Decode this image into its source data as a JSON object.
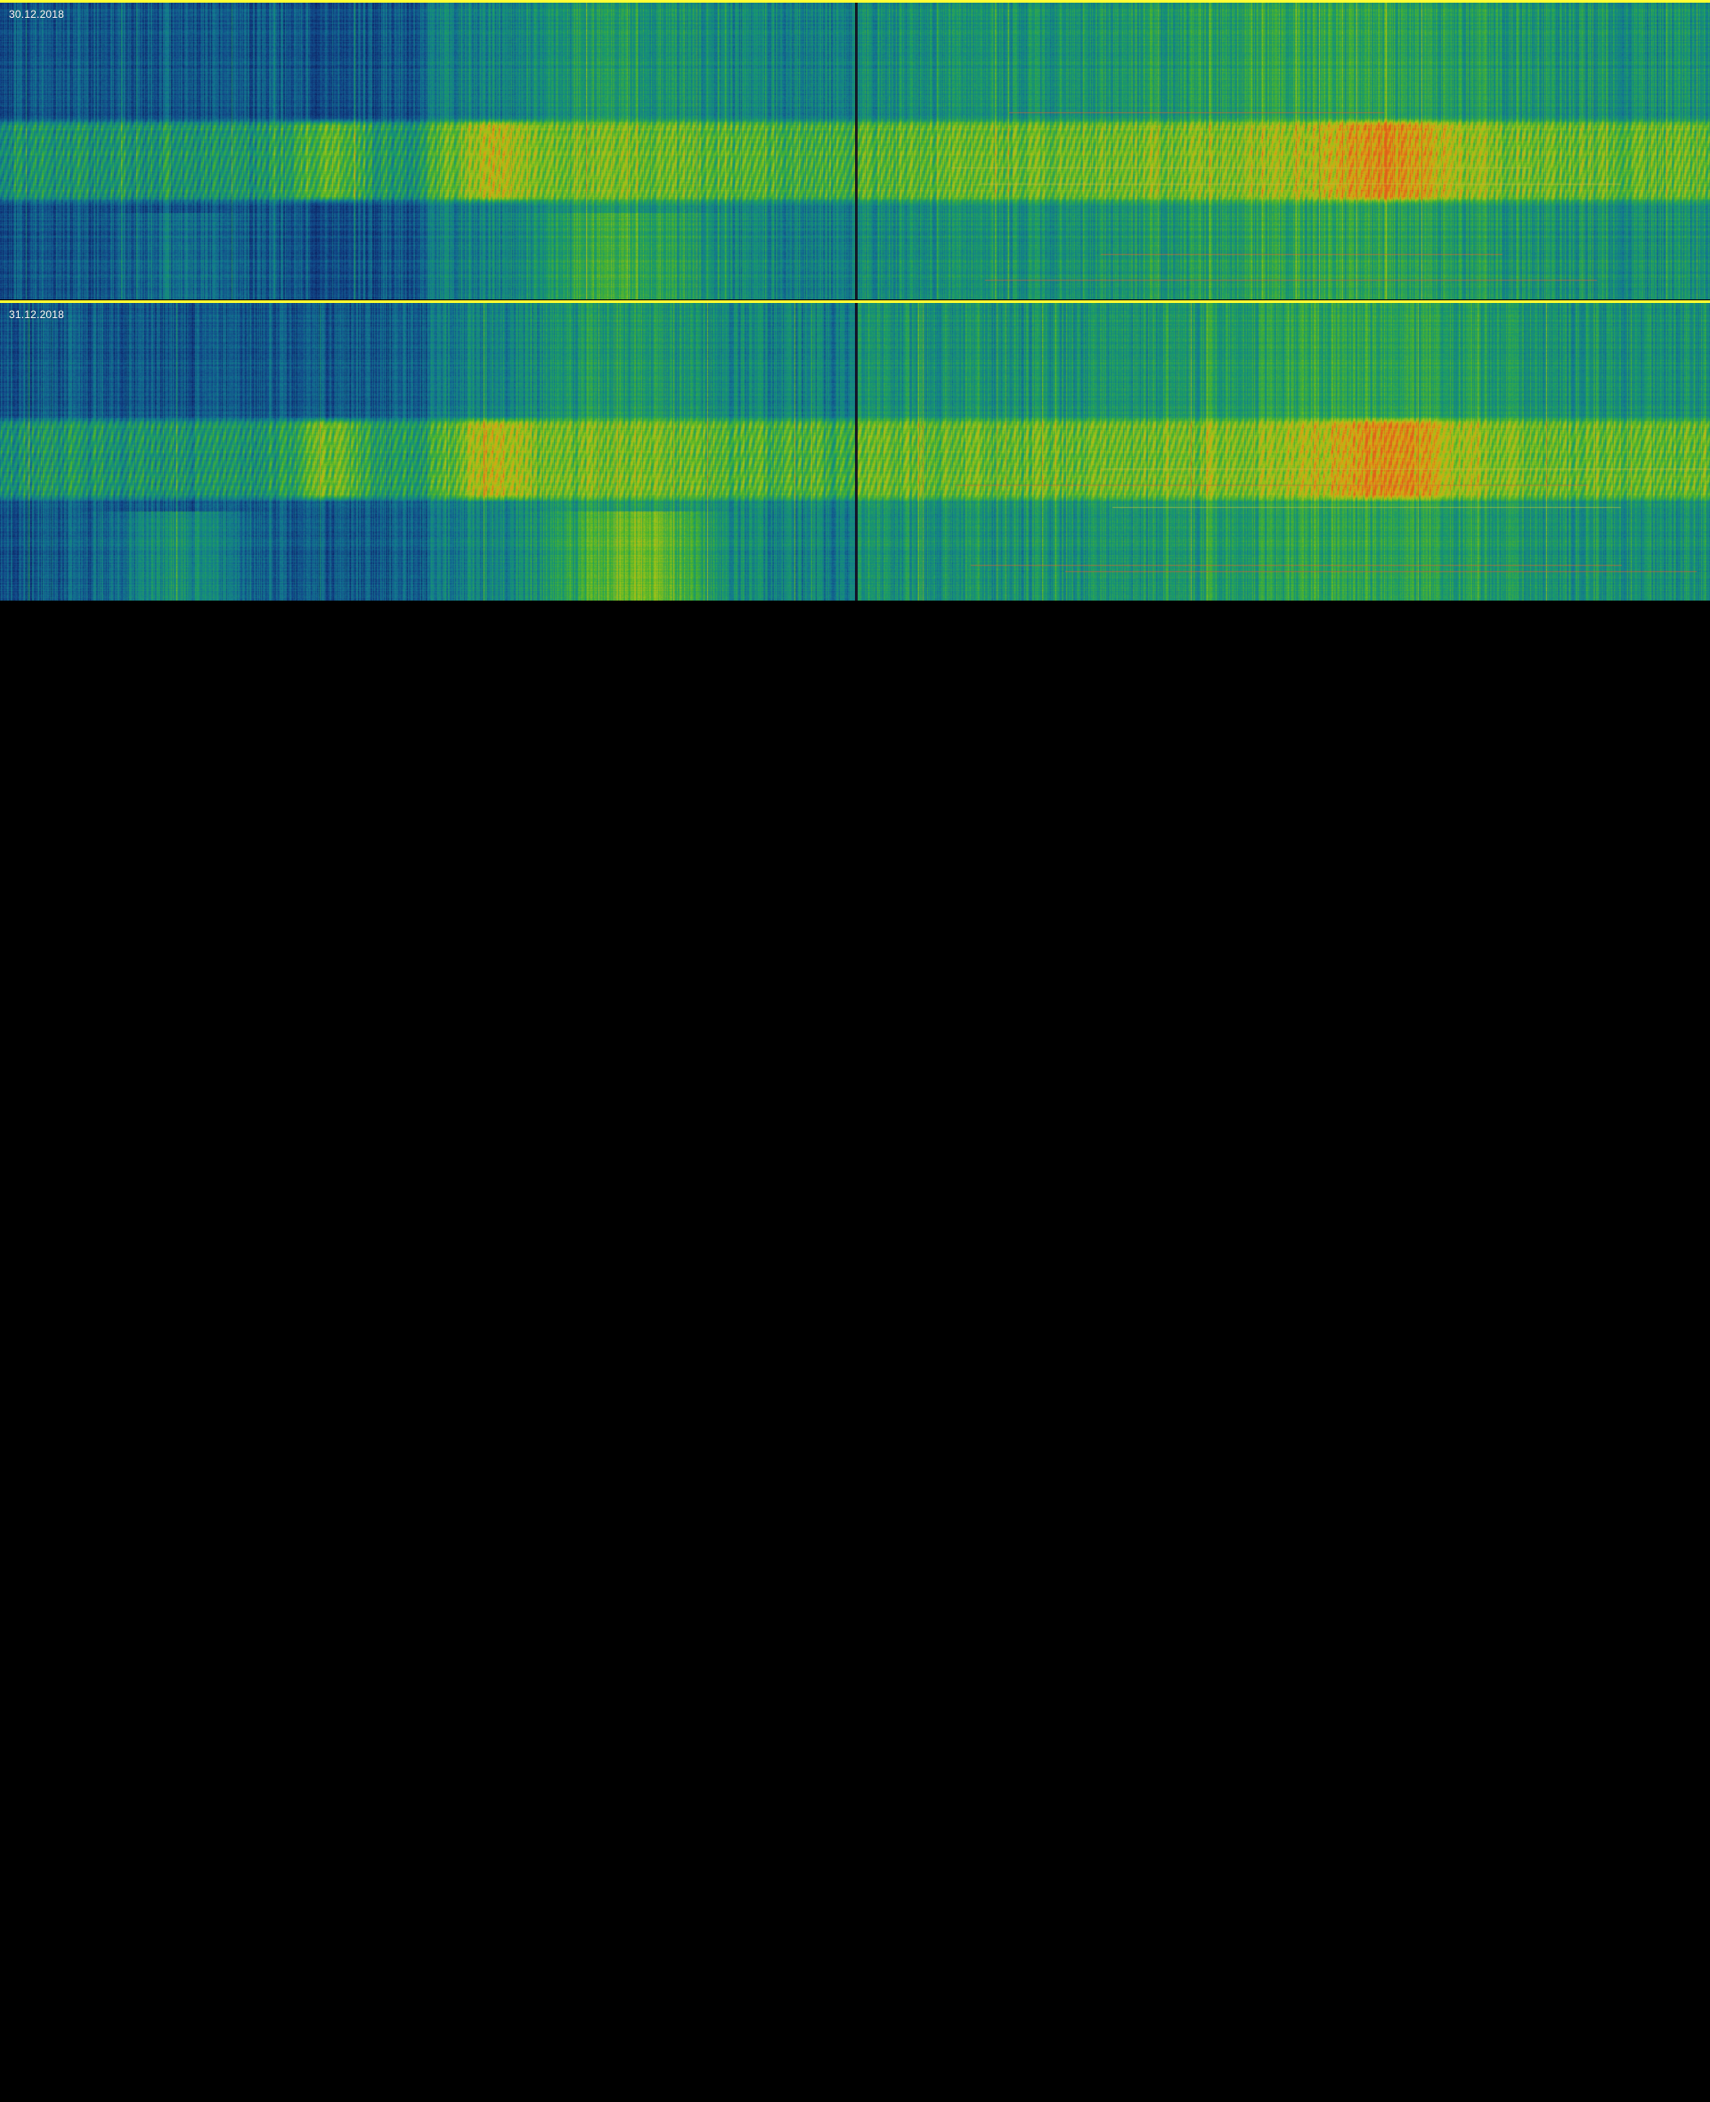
{
  "chart_data": {
    "type": "heatmap",
    "title": "",
    "panels": [
      {
        "label": "30.12.2018"
      },
      {
        "label": "31.12.2018"
      }
    ],
    "colors": {
      "background": "#000000",
      "boundary_line": "#ffff33",
      "colormap": [
        "#0b1a5c",
        "#124a8a",
        "#137a8f",
        "#1a9a6a",
        "#4db32b",
        "#9fc21a",
        "#d9a514",
        "#e0601a"
      ]
    },
    "grid": false,
    "legend": "none"
  }
}
